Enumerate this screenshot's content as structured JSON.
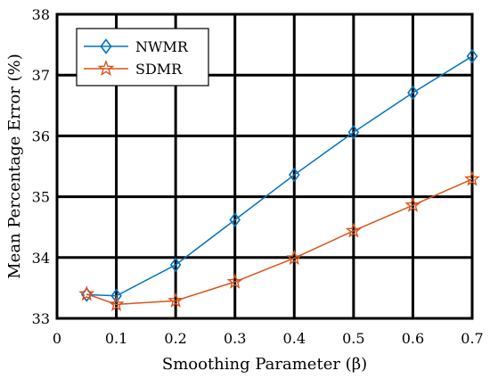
{
  "chart_data": {
    "type": "line",
    "xlabel": "Smoothing Parameter (β)",
    "ylabel": "Mean Percentage Error (%)",
    "xlim": [
      0,
      0.7
    ],
    "ylim": [
      33,
      38
    ],
    "xticks": [
      "0",
      "0.1",
      "0.2",
      "0.3",
      "0.4",
      "0.5",
      "0.6",
      "0.7"
    ],
    "yticks": [
      "33",
      "34",
      "35",
      "36",
      "37",
      "38"
    ],
    "grid": true,
    "legend_position": "top-left",
    "x": [
      0.05,
      0.1,
      0.2,
      0.3,
      0.4,
      0.5,
      0.6,
      0.7
    ],
    "series": [
      {
        "name": "NWMR",
        "color": "#0072BD",
        "marker": "diamond",
        "values": [
          33.39,
          33.37,
          33.88,
          34.62,
          35.36,
          36.06,
          36.71,
          37.31
        ]
      },
      {
        "name": "SDMR",
        "color": "#D95319",
        "marker": "star",
        "values": [
          33.4,
          33.23,
          33.29,
          33.6,
          33.99,
          34.44,
          34.86,
          35.29
        ]
      }
    ]
  }
}
